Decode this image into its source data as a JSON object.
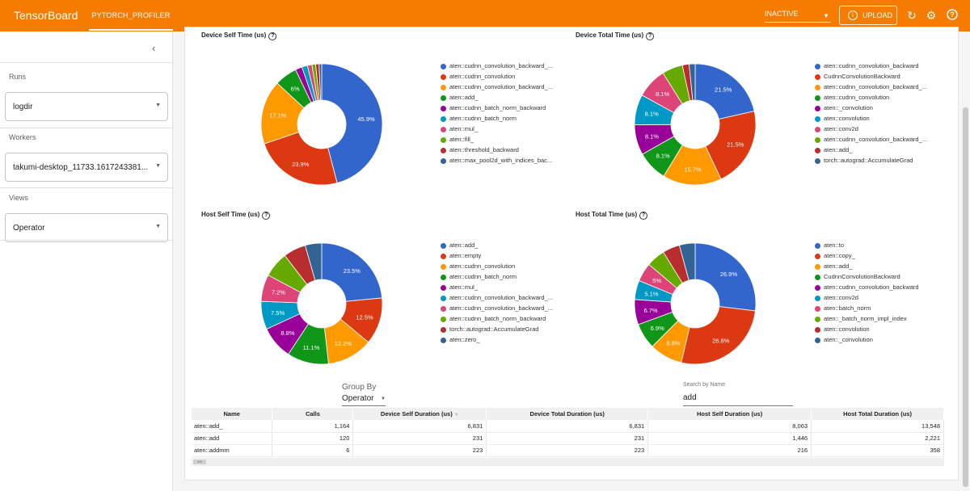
{
  "app": {
    "title": "TensorBoard",
    "active_tab": "PYTORCH_PROFILER"
  },
  "header": {
    "status_select": "INACTIVE",
    "upload_label": "UPLOAD"
  },
  "sidebar": {
    "runs_label": "Runs",
    "runs_value": "logdir",
    "workers_label": "Workers",
    "workers_value": "takumi-desktop_11733.1617243381...",
    "views_label": "Views",
    "views_value": "Operator"
  },
  "colors": {
    "accent": "#f57c00",
    "palette": [
      "#3366cc",
      "#dc3912",
      "#ff9900",
      "#109618",
      "#990099",
      "#0099c6",
      "#dd4477",
      "#66aa00",
      "#b82e2e",
      "#316395"
    ]
  },
  "charts": {
    "device_self": {
      "title": "Device Self Time (us)",
      "legend": [
        "aten::cudnn_convolution_backward_...",
        "aten::cudnn_convolution",
        "aten::cudnn_convolution_backward_...",
        "aten::add_",
        "aten::cudnn_batch_norm_backward",
        "aten::cudnn_batch_norm",
        "aten::mul_",
        "aten::fill_",
        "aten::threshold_backward",
        "aten::max_pool2d_with_indices_bac..."
      ],
      "slices": [
        {
          "value": 45.9,
          "label": "45.9%"
        },
        {
          "value": 23.9,
          "label": "23.9%"
        },
        {
          "value": 17.1,
          "label": "17.1%"
        },
        {
          "value": 6,
          "label": "6%"
        },
        {
          "value": 1.8,
          "label": ""
        },
        {
          "value": 1.5,
          "label": ""
        },
        {
          "value": 1.2,
          "label": ""
        },
        {
          "value": 1.0,
          "label": ""
        },
        {
          "value": 0.9,
          "label": ""
        },
        {
          "value": 0.7,
          "label": ""
        }
      ]
    },
    "device_total": {
      "title": "Device Total Time (us)",
      "legend": [
        "aten::cudnn_convolution_backward",
        "CudnnConvolutionBackward",
        "aten::cudnn_convolution_backward_...",
        "aten::cudnn_convolution",
        "aten::_convolution",
        "aten::convolution",
        "aten::conv2d",
        "aten::cudnn_convolution_backward_...",
        "aten::add_",
        "torch::autograd::AccumulateGrad"
      ],
      "slices": [
        {
          "value": 21.5,
          "label": "21.5%"
        },
        {
          "value": 21.5,
          "label": "21.5%"
        },
        {
          "value": 15.7,
          "label": "15.7%"
        },
        {
          "value": 8.1,
          "label": "8.1%"
        },
        {
          "value": 8.1,
          "label": "8.1%"
        },
        {
          "value": 8.1,
          "label": "8.1%"
        },
        {
          "value": 8.1,
          "label": "8.1%"
        },
        {
          "value": 5.5,
          "label": ""
        },
        {
          "value": 1.8,
          "label": ""
        },
        {
          "value": 1.6,
          "label": ""
        }
      ]
    },
    "host_self": {
      "title": "Host Self Time (us)",
      "legend": [
        "aten::add_",
        "aten::empty",
        "aten::cudnn_convolution",
        "aten::cudnn_batch_norm",
        "aten::mul_",
        "aten::cudnn_convolution_backward_...",
        "aten::cudnn_convolution_backward_...",
        "aten::cudnn_batch_norm_backward",
        "torch::autograd::AccumulateGrad",
        "aten::zero_"
      ],
      "slices": [
        {
          "value": 23.5,
          "label": "23.5%"
        },
        {
          "value": 12.5,
          "label": "12.5%"
        },
        {
          "value": 12.2,
          "label": "12.2%"
        },
        {
          "value": 11.1,
          "label": "11.1%"
        },
        {
          "value": 8.8,
          "label": "8.8%"
        },
        {
          "value": 7.5,
          "label": "7.5%"
        },
        {
          "value": 7.2,
          "label": "7.2%"
        },
        {
          "value": 6.8,
          "label": ""
        },
        {
          "value": 6.0,
          "label": ""
        },
        {
          "value": 4.4,
          "label": ""
        }
      ]
    },
    "host_total": {
      "title": "Host Total Time (us)",
      "legend": [
        "aten::to",
        "aten::copy_",
        "aten::add_",
        "CudnnConvolutionBackward",
        "aten::cudnn_convolution_backward",
        "aten::conv2d",
        "aten::batch_norm",
        "aten::_batch_norm_impl_index",
        "aten::convolution",
        "aten::_convolution"
      ],
      "slices": [
        {
          "value": 26.9,
          "label": "26.9%"
        },
        {
          "value": 26.8,
          "label": "26.8%"
        },
        {
          "value": 8.8,
          "label": "8.8%"
        },
        {
          "value": 6.9,
          "label": "6.9%"
        },
        {
          "value": 6.7,
          "label": "6.7%"
        },
        {
          "value": 5.1,
          "label": "5.1%"
        },
        {
          "value": 5,
          "label": "5%"
        },
        {
          "value": 5.0,
          "label": ""
        },
        {
          "value": 4.6,
          "label": ""
        },
        {
          "value": 4.2,
          "label": ""
        }
      ]
    }
  },
  "controls": {
    "group_by_label": "Group By",
    "group_by_value": "Operator",
    "search_label": "Search by Name",
    "search_value": "add"
  },
  "table": {
    "headers": [
      "Name",
      "Calls",
      "Device Self Duration (us)",
      "Device Total Duration (us)",
      "Host Self Duration (us)",
      "Host Total Duration (us)"
    ],
    "rows": [
      [
        "aten::add_",
        "1,164",
        "6,831",
        "6,831",
        "8,063",
        "13,548"
      ],
      [
        "aten::add",
        "120",
        "231",
        "231",
        "1,446",
        "2,221"
      ],
      [
        "aten::addmm",
        "6",
        "223",
        "223",
        "216",
        "358"
      ]
    ]
  }
}
